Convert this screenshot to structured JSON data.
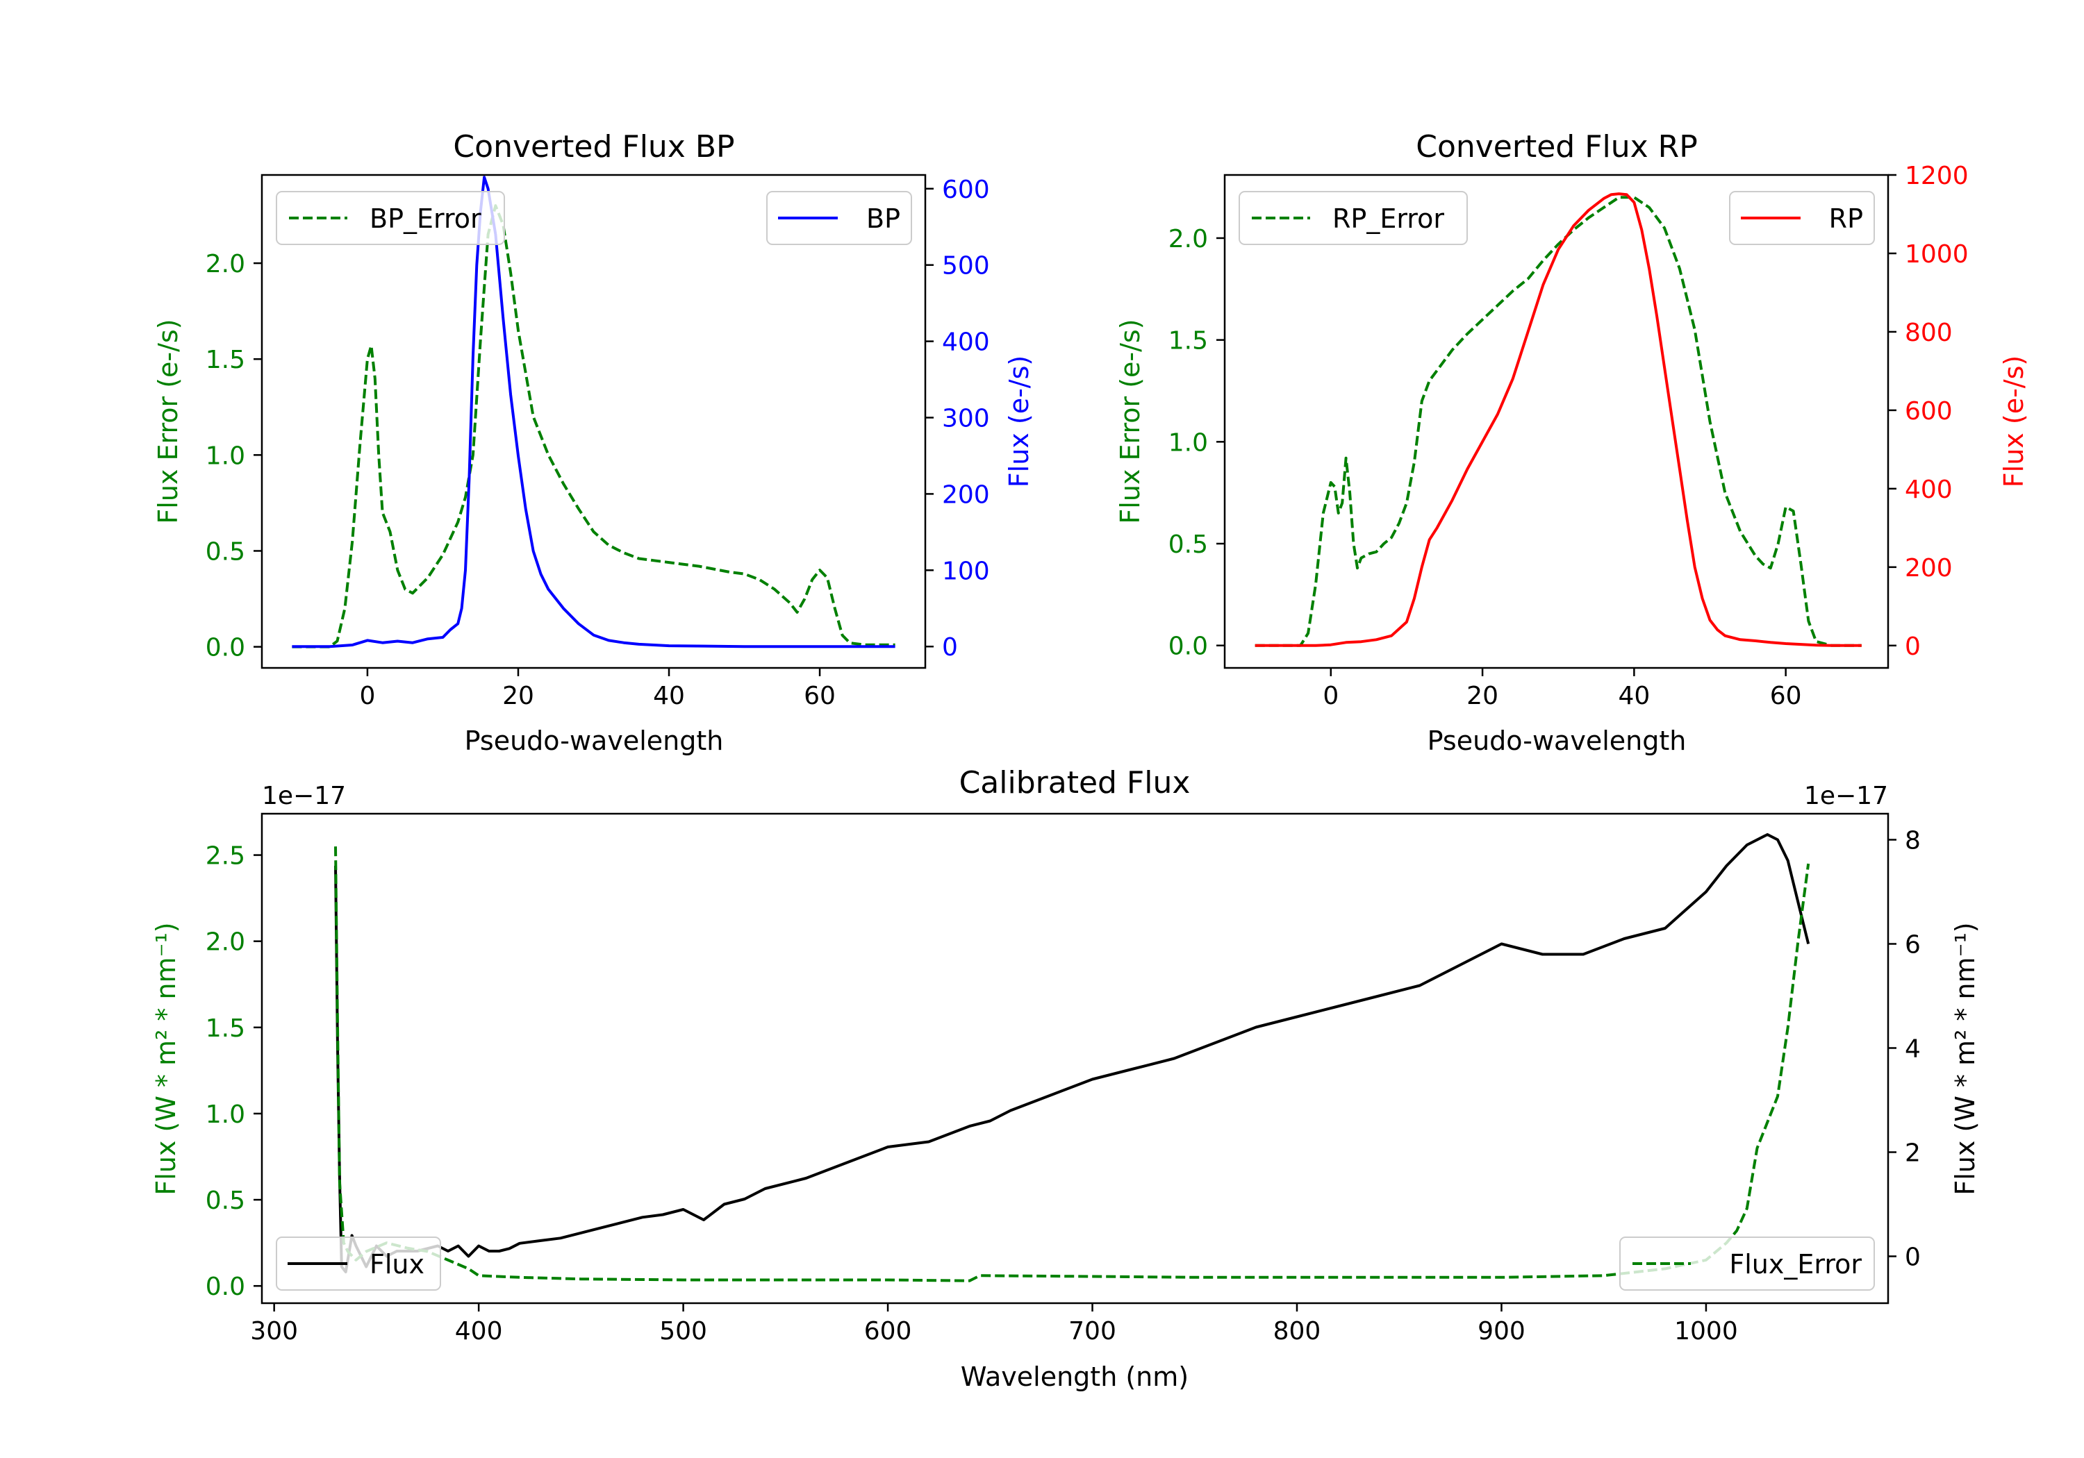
{
  "colors": {
    "bp": "#0000ff",
    "rp": "#ff0000",
    "error": "#008000",
    "flux": "#000000"
  },
  "chart_data": [
    {
      "type": "line",
      "title": "Converted Flux BP",
      "xlabel": "Pseudo-wavelength",
      "xlim": [
        -14,
        74
      ],
      "xticks": [
        0,
        20,
        40,
        60
      ],
      "left_axis": {
        "label": "Flux Error (e-/s)",
        "ylim": [
          -0.11,
          2.46
        ],
        "ticks": [
          0.0,
          0.5,
          1.0,
          1.5,
          2.0
        ],
        "tick_labels": [
          "0.0",
          "0.5",
          "1.0",
          "1.5",
          "2.0"
        ]
      },
      "right_axis": {
        "label": "Flux (e-/s)",
        "ylim": [
          -28,
          618
        ],
        "ticks": [
          0,
          100,
          200,
          300,
          400,
          500,
          600
        ],
        "tick_labels": [
          "0",
          "100",
          "200",
          "300",
          "400",
          "500",
          "600"
        ]
      },
      "series": [
        {
          "name": "BP_Error",
          "axis": "left",
          "style": "dashed",
          "x": [
            -10,
            -5,
            -4,
            -3,
            -2,
            -1,
            0,
            0.5,
            1,
            1.5,
            2,
            3,
            4,
            5,
            6,
            7,
            8,
            10,
            12,
            13,
            14,
            15,
            16,
            17,
            18,
            19,
            20,
            22,
            24,
            26,
            28,
            30,
            32,
            34,
            36,
            38,
            40,
            44,
            48,
            50,
            52,
            54,
            56,
            57,
            58,
            59,
            60,
            61,
            62,
            63,
            64,
            66,
            68,
            70
          ],
          "y": [
            0.0,
            0.0,
            0.03,
            0.2,
            0.55,
            1.05,
            1.5,
            1.57,
            1.4,
            1.0,
            0.7,
            0.6,
            0.4,
            0.3,
            0.28,
            0.32,
            0.36,
            0.48,
            0.65,
            0.78,
            1.0,
            1.6,
            2.15,
            2.3,
            2.2,
            1.95,
            1.65,
            1.2,
            1.0,
            0.85,
            0.72,
            0.6,
            0.53,
            0.49,
            0.46,
            0.45,
            0.44,
            0.42,
            0.39,
            0.38,
            0.35,
            0.3,
            0.23,
            0.18,
            0.25,
            0.35,
            0.4,
            0.36,
            0.2,
            0.06,
            0.02,
            0.01,
            0.01,
            0.01
          ]
        },
        {
          "name": "BP",
          "axis": "right",
          "style": "solid",
          "x": [
            -10,
            -5,
            -2,
            0,
            2,
            4,
            6,
            8,
            10,
            11,
            12,
            12.5,
            13,
            13.5,
            14,
            14.5,
            15,
            15.5,
            16,
            17,
            18,
            19,
            20,
            21,
            22,
            23,
            24,
            26,
            28,
            30,
            32,
            34,
            36,
            40,
            50,
            60,
            70
          ],
          "y": [
            0,
            0,
            2,
            8,
            5,
            7,
            5,
            10,
            12,
            22,
            30,
            50,
            100,
            220,
            380,
            500,
            570,
            615,
            600,
            540,
            430,
            330,
            250,
            180,
            125,
            95,
            75,
            50,
            30,
            15,
            8,
            5,
            3,
            1,
            0,
            0,
            0
          ]
        }
      ],
      "legend": [
        {
          "label": "BP_Error",
          "position": "upper-left"
        },
        {
          "label": "BP",
          "position": "upper-right"
        }
      ]
    },
    {
      "type": "line",
      "title": "Converted Flux RP",
      "xlabel": "Pseudo-wavelength",
      "xlim": [
        -14,
        73.5
      ],
      "xticks": [
        0,
        20,
        40,
        60
      ],
      "left_axis": {
        "label": "Flux Error (e-/s)",
        "ylim": [
          -0.11,
          2.31
        ],
        "ticks": [
          0.0,
          0.5,
          1.0,
          1.5,
          2.0
        ],
        "tick_labels": [
          "0.0",
          "0.5",
          "1.0",
          "1.5",
          "2.0"
        ]
      },
      "right_axis": {
        "label": "Flux (e-/s)",
        "ylim": [
          -57,
          1200
        ],
        "ticks": [
          0,
          200,
          400,
          600,
          800,
          1000,
          1200
        ],
        "tick_labels": [
          "0",
          "200",
          "400",
          "600",
          "800",
          "1000",
          "1200"
        ]
      },
      "series": [
        {
          "name": "RP_Error",
          "axis": "left",
          "style": "dashed",
          "x": [
            -10,
            -4,
            -3,
            -2,
            -1,
            0,
            0.5,
            1,
            1.5,
            2,
            2.5,
            3,
            3.5,
            4,
            5,
            6,
            7,
            8,
            9,
            10,
            11,
            12,
            13,
            14,
            16,
            18,
            20,
            22,
            24,
            26,
            28,
            30,
            32,
            34,
            36,
            38,
            40,
            42,
            44,
            46,
            48,
            50,
            52,
            54,
            56,
            57,
            58,
            59,
            60,
            61,
            62,
            63,
            64,
            66,
            70
          ],
          "y": [
            0.0,
            0.0,
            0.06,
            0.3,
            0.65,
            0.8,
            0.78,
            0.65,
            0.7,
            0.92,
            0.75,
            0.5,
            0.38,
            0.43,
            0.45,
            0.46,
            0.5,
            0.53,
            0.6,
            0.7,
            0.9,
            1.2,
            1.3,
            1.35,
            1.45,
            1.53,
            1.6,
            1.67,
            1.74,
            1.8,
            1.89,
            1.97,
            2.04,
            2.1,
            2.15,
            2.2,
            2.2,
            2.15,
            2.05,
            1.85,
            1.55,
            1.1,
            0.75,
            0.56,
            0.44,
            0.4,
            0.38,
            0.5,
            0.68,
            0.66,
            0.4,
            0.12,
            0.02,
            0.0,
            0.0
          ]
        },
        {
          "name": "RP",
          "axis": "right",
          "style": "solid",
          "x": [
            -10,
            -2,
            0,
            2,
            4,
            6,
            8,
            10,
            11,
            12,
            13,
            14,
            16,
            18,
            20,
            22,
            24,
            26,
            28,
            30,
            32,
            34,
            36,
            37,
            38,
            39,
            40,
            41,
            42,
            43,
            44,
            45,
            46,
            47,
            48,
            49,
            50,
            51,
            52,
            54,
            56,
            58,
            60,
            62,
            64,
            66,
            70
          ],
          "y": [
            0,
            0,
            2,
            8,
            10,
            15,
            25,
            60,
            120,
            200,
            270,
            300,
            370,
            450,
            520,
            590,
            680,
            800,
            920,
            1010,
            1070,
            1110,
            1140,
            1150,
            1152,
            1150,
            1130,
            1060,
            960,
            840,
            710,
            580,
            450,
            320,
            200,
            120,
            65,
            40,
            25,
            15,
            12,
            8,
            5,
            3,
            1,
            0,
            0
          ]
        }
      ],
      "legend": [
        {
          "label": "RP_Error",
          "position": "upper-left"
        },
        {
          "label": "RP",
          "position": "upper-right"
        }
      ]
    },
    {
      "type": "line",
      "title": "Calibrated Flux",
      "xlabel": "Wavelength (nm)",
      "xlim": [
        294,
        1089
      ],
      "xticks": [
        300,
        400,
        500,
        600,
        700,
        800,
        900,
        1000
      ],
      "left_axis": {
        "label": "Flux (W * m² * nm⁻¹)",
        "offset_text": "1e−17",
        "ylim": [
          -0.1,
          2.74
        ],
        "ticks": [
          0.0,
          0.5,
          1.0,
          1.5,
          2.0,
          2.5
        ],
        "tick_labels": [
          "0.0",
          "0.5",
          "1.0",
          "1.5",
          "2.0",
          "2.5"
        ]
      },
      "right_axis": {
        "label": "Flux (W * m² * nm⁻¹)",
        "offset_text": "1e−17",
        "ylim": [
          -0.9,
          8.5
        ],
        "ticks": [
          0,
          2,
          4,
          6,
          8
        ],
        "tick_labels": [
          "0",
          "2",
          "4",
          "6",
          "8"
        ]
      },
      "series": [
        {
          "name": "Flux",
          "axis": "right",
          "style": "solid",
          "x": [
            330,
            331,
            332,
            333,
            335,
            338,
            340,
            345,
            350,
            355,
            360,
            370,
            380,
            385,
            390,
            395,
            400,
            405,
            410,
            415,
            420,
            430,
            440,
            450,
            460,
            470,
            480,
            490,
            500,
            510,
            520,
            530,
            540,
            560,
            580,
            600,
            620,
            640,
            650,
            660,
            680,
            700,
            720,
            740,
            760,
            780,
            800,
            820,
            840,
            860,
            880,
            900,
            920,
            940,
            960,
            980,
            1000,
            1010,
            1020,
            1030,
            1035,
            1040,
            1045,
            1050
          ],
          "y": [
            7.5,
            4.0,
            1.5,
            -0.2,
            -0.3,
            0.4,
            0.2,
            -0.2,
            0.2,
            0.0,
            0.1,
            0.1,
            0.2,
            0.1,
            0.2,
            0.0,
            0.2,
            0.1,
            0.1,
            0.15,
            0.25,
            0.3,
            0.35,
            0.45,
            0.55,
            0.65,
            0.75,
            0.8,
            0.9,
            0.7,
            1.0,
            1.1,
            1.3,
            1.5,
            1.8,
            2.1,
            2.2,
            2.5,
            2.6,
            2.8,
            3.1,
            3.4,
            3.6,
            3.8,
            4.1,
            4.4,
            4.6,
            4.8,
            5.0,
            5.2,
            5.6,
            6.0,
            5.8,
            5.8,
            6.1,
            6.3,
            7.0,
            7.5,
            7.9,
            8.1,
            8.0,
            7.6,
            6.8,
            6.0
          ]
        },
        {
          "name": "Flux_Error",
          "axis": "left",
          "style": "dashed",
          "x": [
            330,
            331,
            332,
            334,
            336,
            340,
            345,
            355,
            365,
            375,
            385,
            395,
            400,
            420,
            450,
            500,
            550,
            600,
            640,
            645,
            700,
            750,
            800,
            850,
            900,
            950,
            980,
            1000,
            1010,
            1015,
            1020,
            1025,
            1030,
            1035,
            1040,
            1045,
            1050
          ],
          "y": [
            2.55,
            1.5,
            0.6,
            0.25,
            0.2,
            0.15,
            0.2,
            0.25,
            0.22,
            0.2,
            0.15,
            0.1,
            0.06,
            0.05,
            0.04,
            0.035,
            0.035,
            0.035,
            0.03,
            0.06,
            0.055,
            0.05,
            0.05,
            0.05,
            0.05,
            0.06,
            0.1,
            0.15,
            0.25,
            0.32,
            0.45,
            0.8,
            0.95,
            1.1,
            1.5,
            2.0,
            2.45
          ]
        }
      ],
      "legend": [
        {
          "label": "Flux",
          "position": "lower-left"
        },
        {
          "label": "Flux_Error",
          "position": "lower-right"
        }
      ]
    }
  ]
}
